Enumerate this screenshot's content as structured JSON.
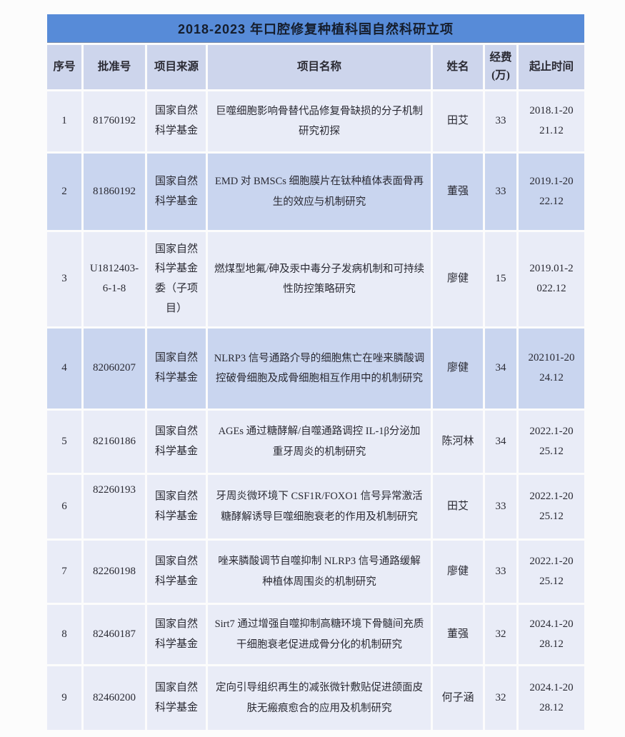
{
  "title": "2018-2023 年口腔修复种植科国自然科研立项",
  "columns": {
    "seq": "序号",
    "approval": "批准号",
    "source": "项目来源",
    "project": "项目名称",
    "name": "姓名",
    "fund": "经费(万)",
    "period": "起止时间"
  },
  "colors": {
    "title_bg": "#578bd8",
    "header_bg": "#cdd5ec",
    "row_light": "#e9ecf7",
    "row_dark": "#c9d5ef",
    "text": "#2a2a33"
  },
  "rows": [
    {
      "seq": "1",
      "approval": "81760192",
      "source": "国家自然科学基金",
      "project": "巨噬细胞影响骨替代品修复骨缺损的分子机制研究初探",
      "name": "田艾",
      "fund": "33",
      "period": "2018.1-2021.12"
    },
    {
      "seq": "2",
      "approval": "81860192",
      "source": "国家自然科学基金",
      "project": "EMD 对 BMSCs 细胞膜片在钛种植体表面骨再生的效应与机制研究",
      "name": "董强",
      "fund": "33",
      "period": "2019.1-2022.12"
    },
    {
      "seq": "3",
      "approval": "U1812403-6-1-8",
      "source": "国家自然科学基金委（子项目）",
      "project": "燃煤型地氟/砷及汞中毒分子发病机制和可持续性防控策略研究",
      "name": "廖健",
      "fund": "15",
      "period": "2019.01-2022.12"
    },
    {
      "seq": "4",
      "approval": "82060207",
      "source": "国家自然科学基金",
      "project": "NLRP3 信号通路介导的细胞焦亡在唑来膦酸调控破骨细胞及成骨细胞相互作用中的机制研究",
      "name": "廖健",
      "fund": "34",
      "period": "202101-2024.12"
    },
    {
      "seq": "5",
      "approval": "82160186",
      "source": "国家自然科学基金",
      "project": "AGEs 通过糖酵解/自噬通路调控 IL-1β分泌加重牙周炎的机制研究",
      "name": "陈河林",
      "fund": "34",
      "period": "2022.1-2025.12"
    },
    {
      "seq": "6",
      "approval": "82260193",
      "source": "国家自然科学基金",
      "project": "牙周炎微环境下 CSF1R/FOXO1 信号异常激活糖酵解诱导巨噬细胞衰老的作用及机制研究",
      "name": "田艾",
      "fund": "33",
      "period": "2022.1-2025.12"
    },
    {
      "seq": "7",
      "approval": "82260198",
      "source": "国家自然科学基金",
      "project": "唑来膦酸调节自噬抑制 NLRP3 信号通路缓解种植体周围炎的机制研究",
      "name": "廖健",
      "fund": "33",
      "period": "2022.1-2025.12"
    },
    {
      "seq": "8",
      "approval": "82460187",
      "source": "国家自然科学基金",
      "project": "Sirt7 通过增强自噬抑制高糖环境下骨髓间充质干细胞衰老促进成骨分化的机制研究",
      "name": "董强",
      "fund": "32",
      "period": "2024.1-2028.12"
    },
    {
      "seq": "9",
      "approval": "82460200",
      "source": "国家自然科学基金",
      "project": "定向引导组织再生的减张微针敷贴促进颌面皮肤无瘢痕愈合的应用及机制研究",
      "name": "何子涵",
      "fund": "32",
      "period": "2024.1-2028.12"
    }
  ]
}
